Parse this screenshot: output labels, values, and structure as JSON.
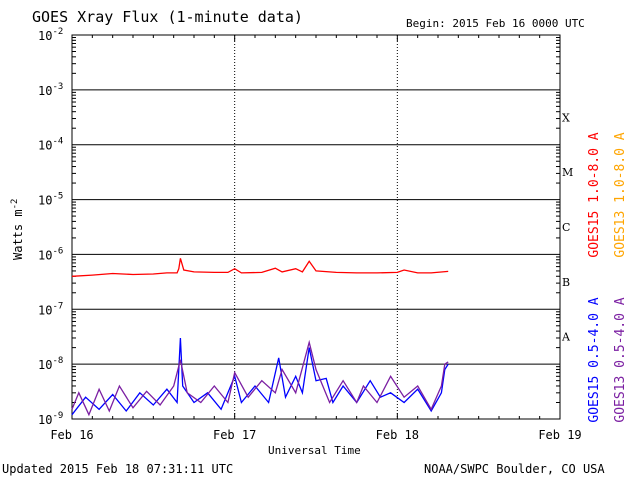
{
  "header": {
    "title": "GOES Xray Flux (1-minute data)",
    "begin": "Begin:  2015 Feb 16 0000 UTC"
  },
  "footer": {
    "updated": "Updated 2015 Feb 18 07:31:11 UTC",
    "credit": "NOAA/SWPC Boulder, CO USA"
  },
  "chart_data": {
    "type": "line",
    "title": "GOES Xray Flux (1-minute data)",
    "xlabel": "Universal Time",
    "ylabel": "Watts m",
    "ylabel_superscript": "-2",
    "y_scale": "log",
    "ylim": [
      1e-09,
      0.01
    ],
    "xlim": [
      "2015-02-16 00:00",
      "2015-02-19 00:00"
    ],
    "x_ticks": [
      "Feb 16",
      "Feb 17",
      "Feb 18",
      "Feb 19"
    ],
    "y_ticks": [
      {
        "base": "10",
        "exp": "-2"
      },
      {
        "base": "10",
        "exp": "-3"
      },
      {
        "base": "10",
        "exp": "-4"
      },
      {
        "base": "10",
        "exp": "-5"
      },
      {
        "base": "10",
        "exp": "-6"
      },
      {
        "base": "10",
        "exp": "-7"
      },
      {
        "base": "10",
        "exp": "-8"
      },
      {
        "base": "10",
        "exp": "-9"
      }
    ],
    "flare_classes": [
      {
        "label": "X",
        "value": 0.0001
      },
      {
        "label": "M",
        "value": 1e-05
      },
      {
        "label": "C",
        "value": 1e-06
      },
      {
        "label": "B",
        "value": 1e-07
      },
      {
        "label": "A",
        "value": 1e-08
      }
    ],
    "grid": "horizontal lines at each decade, dotted verticals at day boundaries",
    "series": [
      {
        "name": "GOES15 1.0-8.0 A",
        "color": "#ff0000",
        "points": [
          [
            "2015-02-16 00:00",
            4e-07
          ],
          [
            "2015-02-16 03:00",
            4.2e-07
          ],
          [
            "2015-02-16 06:00",
            4.5e-07
          ],
          [
            "2015-02-16 09:00",
            4.3e-07
          ],
          [
            "2015-02-16 12:00",
            4.4e-07
          ],
          [
            "2015-02-16 14:00",
            4.6e-07
          ],
          [
            "2015-02-16 15:30",
            4.6e-07
          ],
          [
            "2015-02-16 15:45",
            5.5e-07
          ],
          [
            "2015-02-16 16:00",
            8.5e-07
          ],
          [
            "2015-02-16 16:30",
            5.2e-07
          ],
          [
            "2015-02-16 18:00",
            4.8e-07
          ],
          [
            "2015-02-16 21:00",
            4.7e-07
          ],
          [
            "2015-02-16 23:00",
            4.7e-07
          ],
          [
            "2015-02-17 00:00",
            5.5e-07
          ],
          [
            "2015-02-17 01:00",
            4.6e-07
          ],
          [
            "2015-02-17 04:00",
            4.7e-07
          ],
          [
            "2015-02-17 06:00",
            5.6e-07
          ],
          [
            "2015-02-17 07:00",
            4.8e-07
          ],
          [
            "2015-02-17 09:00",
            5.5e-07
          ],
          [
            "2015-02-17 10:00",
            4.8e-07
          ],
          [
            "2015-02-17 11:00",
            7.5e-07
          ],
          [
            "2015-02-17 12:00",
            5e-07
          ],
          [
            "2015-02-17 15:00",
            4.7e-07
          ],
          [
            "2015-02-17 18:00",
            4.6e-07
          ],
          [
            "2015-02-17 21:00",
            4.6e-07
          ],
          [
            "2015-02-18 00:00",
            4.7e-07
          ],
          [
            "2015-02-18 01:00",
            5.2e-07
          ],
          [
            "2015-02-18 03:00",
            4.6e-07
          ],
          [
            "2015-02-18 05:00",
            4.6e-07
          ],
          [
            "2015-02-18 07:30",
            4.9e-07
          ]
        ]
      },
      {
        "name": "GOES13 1.0-8.0 A",
        "color": "#ffa500",
        "points": []
      },
      {
        "name": "GOES15 0.5-4.0 A",
        "color": "#0000ff",
        "points": [
          [
            "2015-02-16 00:00",
            1.2e-09
          ],
          [
            "2015-02-16 02:00",
            2.5e-09
          ],
          [
            "2015-02-16 04:00",
            1.5e-09
          ],
          [
            "2015-02-16 06:00",
            2.8e-09
          ],
          [
            "2015-02-16 08:00",
            1.4e-09
          ],
          [
            "2015-02-16 10:00",
            3e-09
          ],
          [
            "2015-02-16 12:00",
            1.8e-09
          ],
          [
            "2015-02-16 14:00",
            3.5e-09
          ],
          [
            "2015-02-16 15:30",
            2e-09
          ],
          [
            "2015-02-16 16:00",
            3e-08
          ],
          [
            "2015-02-16 16:20",
            4e-09
          ],
          [
            "2015-02-16 18:00",
            2e-09
          ],
          [
            "2015-02-16 20:00",
            3e-09
          ],
          [
            "2015-02-16 22:00",
            1.5e-09
          ],
          [
            "2015-02-17 00:00",
            6e-09
          ],
          [
            "2015-02-17 01:00",
            2e-09
          ],
          [
            "2015-02-17 03:00",
            4e-09
          ],
          [
            "2015-02-17 05:00",
            2e-09
          ],
          [
            "2015-02-17 06:30",
            1.3e-08
          ],
          [
            "2015-02-17 07:30",
            2.5e-09
          ],
          [
            "2015-02-17 09:00",
            6e-09
          ],
          [
            "2015-02-17 10:00",
            3e-09
          ],
          [
            "2015-02-17 11:00",
            2e-08
          ],
          [
            "2015-02-17 12:00",
            5e-09
          ],
          [
            "2015-02-17 13:30",
            5.5e-09
          ],
          [
            "2015-02-17 14:30",
            2e-09
          ],
          [
            "2015-02-17 16:00",
            4e-09
          ],
          [
            "2015-02-17 18:00",
            2e-09
          ],
          [
            "2015-02-17 20:00",
            5e-09
          ],
          [
            "2015-02-17 21:30",
            2.5e-09
          ],
          [
            "2015-02-17 23:00",
            3e-09
          ],
          [
            "2015-02-18 01:00",
            2e-09
          ],
          [
            "2015-02-18 03:00",
            3.5e-09
          ],
          [
            "2015-02-18 05:00",
            1.4e-09
          ],
          [
            "2015-02-18 06:30",
            3e-09
          ],
          [
            "2015-02-18 07:00",
            8e-09
          ],
          [
            "2015-02-18 07:30",
            1e-08
          ]
        ]
      },
      {
        "name": "GOES13 0.5-4.0 A",
        "color": "#7b1fa2",
        "points": [
          [
            "2015-02-16 00:00",
            1.5e-09
          ],
          [
            "2015-02-16 01:00",
            3e-09
          ],
          [
            "2015-02-16 02:30",
            1.2e-09
          ],
          [
            "2015-02-16 04:00",
            3.5e-09
          ],
          [
            "2015-02-16 05:30",
            1.4e-09
          ],
          [
            "2015-02-16 07:00",
            4e-09
          ],
          [
            "2015-02-16 09:00",
            1.6e-09
          ],
          [
            "2015-02-16 11:00",
            3.2e-09
          ],
          [
            "2015-02-16 13:00",
            1.8e-09
          ],
          [
            "2015-02-16 15:00",
            4e-09
          ],
          [
            "2015-02-16 16:00",
            1.2e-08
          ],
          [
            "2015-02-16 17:00",
            3e-09
          ],
          [
            "2015-02-16 19:00",
            2e-09
          ],
          [
            "2015-02-16 21:00",
            4e-09
          ],
          [
            "2015-02-16 23:00",
            2e-09
          ],
          [
            "2015-02-17 00:00",
            7e-09
          ],
          [
            "2015-02-17 02:00",
            2.5e-09
          ],
          [
            "2015-02-17 04:00",
            5e-09
          ],
          [
            "2015-02-17 06:00",
            3e-09
          ],
          [
            "2015-02-17 07:00",
            8e-09
          ],
          [
            "2015-02-17 09:00",
            3e-09
          ],
          [
            "2015-02-17 11:00",
            2.5e-08
          ],
          [
            "2015-02-17 12:00",
            8e-09
          ],
          [
            "2015-02-17 13:00",
            4e-09
          ],
          [
            "2015-02-17 14:00",
            2e-09
          ],
          [
            "2015-02-17 16:00",
            5e-09
          ],
          [
            "2015-02-17 18:00",
            2e-09
          ],
          [
            "2015-02-17 19:00",
            4e-09
          ],
          [
            "2015-02-17 21:00",
            2e-09
          ],
          [
            "2015-02-17 23:00",
            6e-09
          ],
          [
            "2015-02-18 01:00",
            2.5e-09
          ],
          [
            "2015-02-18 03:00",
            4e-09
          ],
          [
            "2015-02-18 05:00",
            1.5e-09
          ],
          [
            "2015-02-18 06:30",
            4e-09
          ],
          [
            "2015-02-18 07:00",
            1e-08
          ],
          [
            "2015-02-18 07:30",
            1.1e-08
          ]
        ]
      }
    ]
  }
}
